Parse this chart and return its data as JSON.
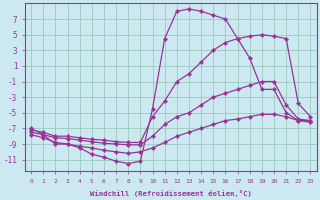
{
  "background_color": "#cce8f0",
  "grid_color": "#99ccbb",
  "line_color": "#993399",
  "marker_color": "#993399",
  "xlabel": "Windchill (Refroidissement éolien,°C)",
  "xlim": [
    -0.5,
    23.5
  ],
  "ylim": [
    -12.5,
    9.0
  ],
  "yticks": [
    -11,
    -9,
    -7,
    -5,
    -3,
    -1,
    1,
    3,
    5,
    7
  ],
  "xticks": [
    0,
    1,
    2,
    3,
    4,
    5,
    6,
    7,
    8,
    9,
    10,
    11,
    12,
    13,
    14,
    15,
    16,
    17,
    18,
    19,
    20,
    21,
    22,
    23
  ],
  "curve_peak": {
    "x": [
      0,
      1,
      2,
      3,
      4,
      5,
      6,
      7,
      8,
      9,
      10,
      11,
      12,
      13,
      14,
      15,
      16,
      17,
      18,
      19,
      20,
      21,
      22,
      23
    ],
    "y": [
      -7.0,
      -7.8,
      -9.0,
      -9.0,
      -9.5,
      -10.3,
      -10.7,
      -11.2,
      -11.5,
      -11.2,
      -4.5,
      4.5,
      8.0,
      8.3,
      8.0,
      7.5,
      7.0,
      4.5,
      2.0,
      -2.0,
      -2.0,
      -5.0,
      -6.0,
      -6.0
    ]
  },
  "curve_mid_upper": {
    "x": [
      0,
      1,
      2,
      3,
      4,
      5,
      6,
      7,
      8,
      9,
      10,
      11,
      12,
      13,
      14,
      15,
      16,
      17,
      18,
      19,
      20,
      21,
      22,
      23
    ],
    "y": [
      -7.2,
      -7.5,
      -8.0,
      -8.0,
      -8.2,
      -8.4,
      -8.5,
      -8.7,
      -8.8,
      -8.8,
      -5.5,
      -3.5,
      -1.0,
      0.0,
      1.5,
      3.0,
      4.0,
      4.5,
      4.8,
      5.0,
      4.8,
      4.5,
      -3.8,
      -5.5
    ]
  },
  "curve_mid_lower": {
    "x": [
      0,
      1,
      2,
      3,
      4,
      5,
      6,
      7,
      8,
      9,
      10,
      11,
      12,
      13,
      14,
      15,
      16,
      17,
      18,
      19,
      20,
      21,
      22,
      23
    ],
    "y": [
      -7.5,
      -7.8,
      -8.2,
      -8.3,
      -8.5,
      -8.7,
      -8.9,
      -9.0,
      -9.1,
      -9.1,
      -8.0,
      -6.5,
      -5.5,
      -5.0,
      -4.0,
      -3.0,
      -2.5,
      -2.0,
      -1.5,
      -1.0,
      -1.0,
      -4.0,
      -5.8,
      -6.0
    ]
  },
  "curve_bottom": {
    "x": [
      0,
      1,
      2,
      3,
      4,
      5,
      6,
      7,
      8,
      9,
      10,
      11,
      12,
      13,
      14,
      15,
      16,
      17,
      18,
      19,
      20,
      21,
      22,
      23
    ],
    "y": [
      -7.8,
      -8.2,
      -8.8,
      -9.0,
      -9.3,
      -9.5,
      -9.8,
      -10.0,
      -10.2,
      -10.0,
      -9.5,
      -8.8,
      -8.0,
      -7.5,
      -7.0,
      -6.5,
      -6.0,
      -5.8,
      -5.5,
      -5.2,
      -5.2,
      -5.5,
      -6.0,
      -6.2
    ]
  }
}
